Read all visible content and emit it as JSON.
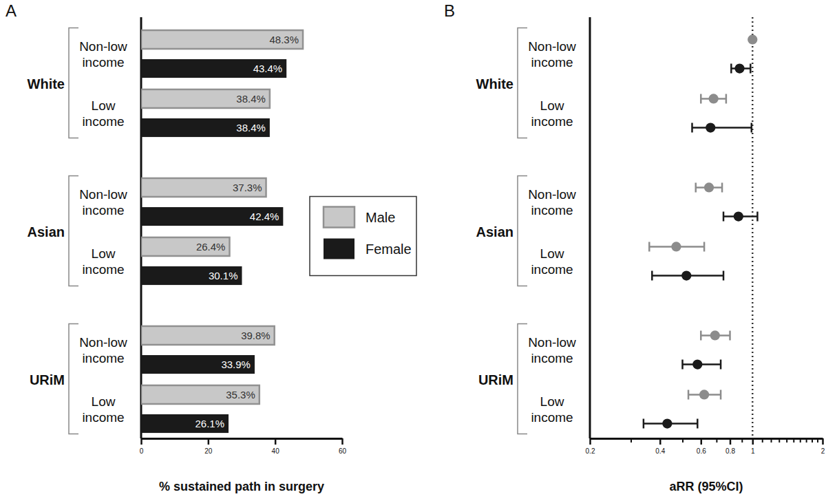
{
  "chart_data": [
    {
      "type": "bar",
      "orientation": "horizontal",
      "title": "A",
      "x_label": "% sustained path in surgery",
      "categories": [
        "Non-low income",
        "Low income",
        "Non-low income",
        "Low income",
        "Non-low income",
        "Low income"
      ],
      "groups": [
        "White",
        "White",
        "Asian",
        "Asian",
        "URiM",
        "URiM"
      ],
      "series": [
        {
          "name": "Male",
          "color": "#c8c8c8",
          "values": [
            48.3,
            38.4,
            37.3,
            26.4,
            39.8,
            35.3
          ],
          "value_labels": [
            "48.3%",
            "38.4%",
            "37.3%",
            "26.4%",
            "39.8%",
            "35.3%"
          ]
        },
        {
          "name": "Female",
          "color": "#1a1a1a",
          "values": [
            43.4,
            38.4,
            42.4,
            30.1,
            33.9,
            26.1
          ],
          "value_labels": [
            "43.4%",
            "38.4%",
            "42.4%",
            "30.1%",
            "33.9%",
            "26.1%"
          ]
        }
      ],
      "xlim": [
        0,
        60
      ],
      "xticks": [
        0,
        20,
        40,
        60
      ],
      "data_labels": true,
      "legend": "right"
    },
    {
      "type": "scatter",
      "title": "B",
      "x_label": "aRR (95%CI)",
      "log": "x",
      "marker": "circle",
      "categories": [
        "Non-low income",
        "Low income",
        "Non-low income",
        "Low income",
        "Non-low income",
        "Low income"
      ],
      "groups": [
        "White",
        "White",
        "Asian",
        "Asian",
        "URiM",
        "URiM"
      ],
      "series": [
        {
          "color": "#8c8c8c",
          "values": [
            1,
            0.68,
            0.65,
            0.47,
            0.69,
            0.62
          ],
          "lower": [
            null,
            0.6,
            0.57,
            0.36,
            0.6,
            0.53
          ],
          "upper": [
            null,
            0.77,
            0.74,
            0.62,
            0.8,
            0.73
          ]
        },
        {
          "color": "#1a1a1a",
          "values": [
            0.88,
            0.66,
            0.87,
            0.52,
            0.58,
            0.43
          ],
          "lower": [
            0.81,
            0.55,
            0.75,
            0.37,
            0.5,
            0.34
          ],
          "upper": [
            0.98,
            0.99,
            1.05,
            0.75,
            0.73,
            0.58
          ]
        }
      ],
      "xlim": [
        0.2,
        2
      ],
      "xticks": [
        0.2,
        0.4,
        0.6,
        0.8,
        1,
        2
      ],
      "minor_xticks": [
        0.3,
        0.5,
        0.7,
        0.9,
        1.1,
        1.2,
        1.3,
        1.4,
        1.5,
        1.6,
        1.7,
        1.8,
        1.9
      ],
      "reference_line": 1
    }
  ]
}
